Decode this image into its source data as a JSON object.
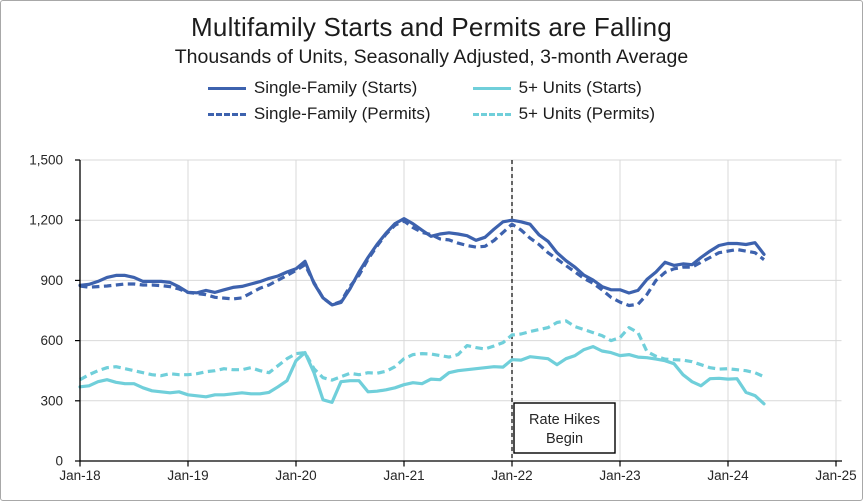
{
  "header": {
    "title": "Multifamily Starts and Permits are Falling",
    "subtitle": "Thousands of Units, Seasonally Adjusted, 3-month Average"
  },
  "chart_data": {
    "type": "line",
    "title": "Multifamily Starts and Permits are Falling",
    "subtitle": "Thousands of Units, Seasonally Adjusted, 3-month Average",
    "ylabel": "Thousands of Units",
    "xlabel": "",
    "ylim": [
      0,
      1500
    ],
    "yticks": [
      0,
      300,
      600,
      900,
      1200,
      1500
    ],
    "ytick_labels": [
      "0",
      "300",
      "600",
      "900",
      "1,200",
      "1,500"
    ],
    "xtick_labels": [
      "Jan-18",
      "Jan-19",
      "Jan-20",
      "Jan-21",
      "Jan-22",
      "Jan-23",
      "Jan-24",
      "Jan-25"
    ],
    "x_start": "Jan-18",
    "x_step": "1 month",
    "months_per_tick": 12,
    "grid": true,
    "legend_position": "top",
    "grid_color": "#D9D9D9",
    "axis_color": "#000000",
    "annotation": {
      "lines": [
        "Rate Hikes",
        "Begin"
      ],
      "vline_at": "Jan-22",
      "vline_month_index": 48,
      "vline_style": "dashed"
    },
    "series": [
      {
        "name": "Single-Family (Starts)",
        "color": "#3D62AE",
        "dash": "solid",
        "values": [
          875,
          880,
          895,
          915,
          925,
          925,
          915,
          895,
          895,
          895,
          890,
          868,
          840,
          838,
          850,
          840,
          853,
          865,
          870,
          882,
          894,
          910,
          922,
          942,
          958,
          995,
          885,
          813,
          778,
          790,
          858,
          942,
          1014,
          1079,
          1135,
          1183,
          1208,
          1182,
          1150,
          1120,
          1131,
          1137,
          1131,
          1123,
          1100,
          1115,
          1155,
          1192,
          1200,
          1192,
          1180,
          1127,
          1095,
          1038,
          998,
          966,
          926,
          902,
          869,
          853,
          853,
          837,
          850,
          905,
          942,
          990,
          975,
          982,
          978,
          1014,
          1046,
          1074,
          1084,
          1084,
          1079,
          1088,
          1030
        ]
      },
      {
        "name": "Single-Family (Permits)",
        "color": "#3D62AE",
        "dash": "dashed",
        "values": [
          872,
          866,
          869,
          872,
          877,
          882,
          882,
          877,
          877,
          874,
          869,
          857,
          840,
          834,
          829,
          816,
          812,
          808,
          813,
          837,
          861,
          877,
          901,
          925,
          950,
          978,
          889,
          813,
          778,
          795,
          870,
          926,
          1005,
          1071,
          1130,
          1175,
          1196,
          1163,
          1139,
          1128,
          1107,
          1102,
          1086,
          1074,
          1066,
          1070,
          1099,
          1139,
          1180,
          1151,
          1111,
          1079,
          1038,
          1006,
          974,
          942,
          910,
          886,
          853,
          816,
          792,
          775,
          781,
          830,
          900,
          940,
          958,
          966,
          966,
          990,
          1014,
          1038,
          1046,
          1054,
          1046,
          1038,
          1003
        ]
      },
      {
        "name": "5+ Units (Starts)",
        "color": "#70CFDA",
        "dash": "solid",
        "values": [
          370,
          375,
          395,
          405,
          392,
          385,
          385,
          365,
          350,
          345,
          340,
          345,
          330,
          325,
          320,
          330,
          330,
          335,
          340,
          335,
          335,
          342,
          370,
          400,
          500,
          540,
          440,
          305,
          292,
          395,
          400,
          400,
          345,
          348,
          355,
          365,
          380,
          390,
          385,
          408,
          405,
          440,
          450,
          455,
          460,
          465,
          470,
          468,
          505,
          503,
          520,
          515,
          510,
          480,
          510,
          525,
          555,
          570,
          548,
          540,
          525,
          530,
          518,
          515,
          508,
          500,
          485,
          430,
          395,
          375,
          410,
          412,
          408,
          410,
          342,
          326,
          285
        ]
      },
      {
        "name": "5+ Units (Permits)",
        "color": "#70CFDA",
        "dash": "dashed",
        "values": [
          405,
          430,
          450,
          465,
          470,
          460,
          450,
          440,
          430,
          425,
          435,
          430,
          430,
          435,
          445,
          450,
          460,
          455,
          455,
          465,
          450,
          440,
          475,
          510,
          535,
          540,
          460,
          415,
          403,
          420,
          437,
          430,
          440,
          437,
          447,
          470,
          510,
          530,
          535,
          533,
          525,
          518,
          530,
          575,
          565,
          558,
          573,
          590,
          628,
          633,
          645,
          655,
          665,
          690,
          698,
          670,
          655,
          640,
          625,
          600,
          615,
          665,
          640,
          545,
          522,
          508,
          505,
          503,
          495,
          480,
          465,
          458,
          460,
          455,
          450,
          440,
          420
        ]
      }
    ]
  }
}
